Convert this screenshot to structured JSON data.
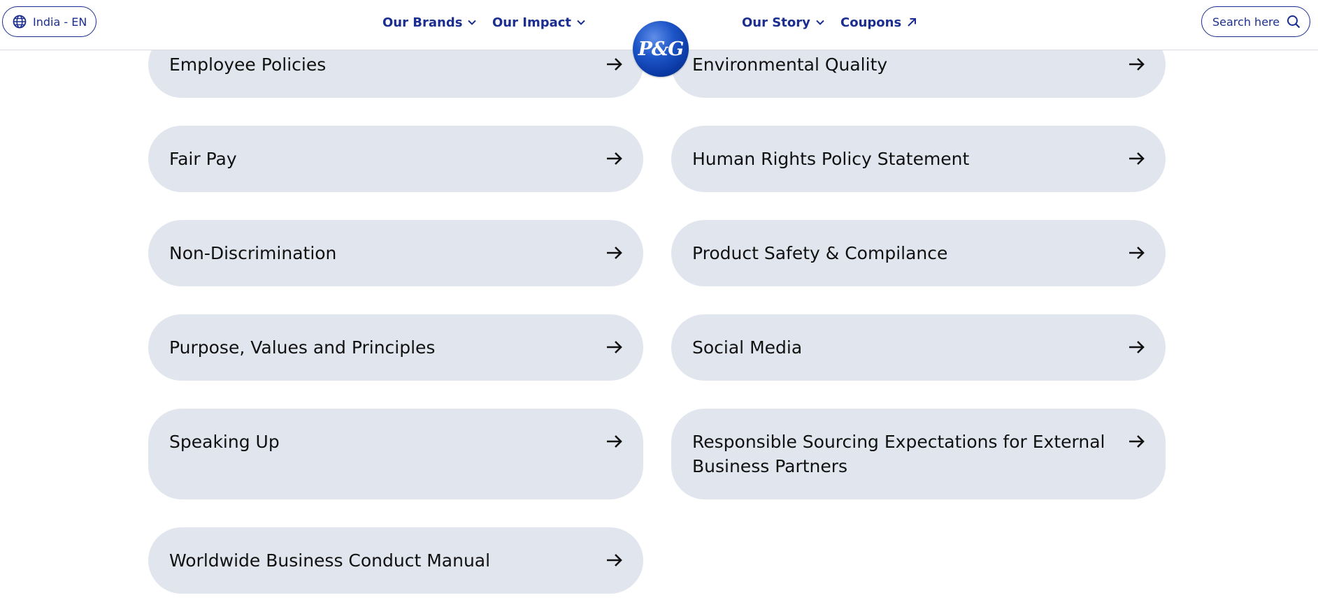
{
  "header": {
    "locale_label": "India - EN",
    "nav": {
      "brands": "Our Brands",
      "impact": "Our Impact",
      "story": "Our Story",
      "coupons": "Coupons"
    },
    "search_label": "Search here",
    "logo_text": "P&G"
  },
  "links": [
    {
      "label": "Employee Policies"
    },
    {
      "label": "Environmental Quality"
    },
    {
      "label": "Fair Pay"
    },
    {
      "label": "Human Rights Policy Statement"
    },
    {
      "label": "Non-Discrimination"
    },
    {
      "label": "Product Safety & Compilance"
    },
    {
      "label": "Purpose, Values and Principles"
    },
    {
      "label": "Social Media"
    },
    {
      "label": "Speaking Up"
    },
    {
      "label": "Responsible Sourcing Expectations for External Business Partners"
    },
    {
      "label": "Worldwide Business Conduct Manual"
    }
  ],
  "colors": {
    "brand_blue": "#1b2e8f",
    "pill_background": "#e1e6ee"
  },
  "icons": {
    "locale": "globe-icon",
    "dropdown": "chevron-down-icon",
    "external": "external-arrow-icon",
    "search": "search-icon",
    "link": "arrow-right-icon"
  }
}
